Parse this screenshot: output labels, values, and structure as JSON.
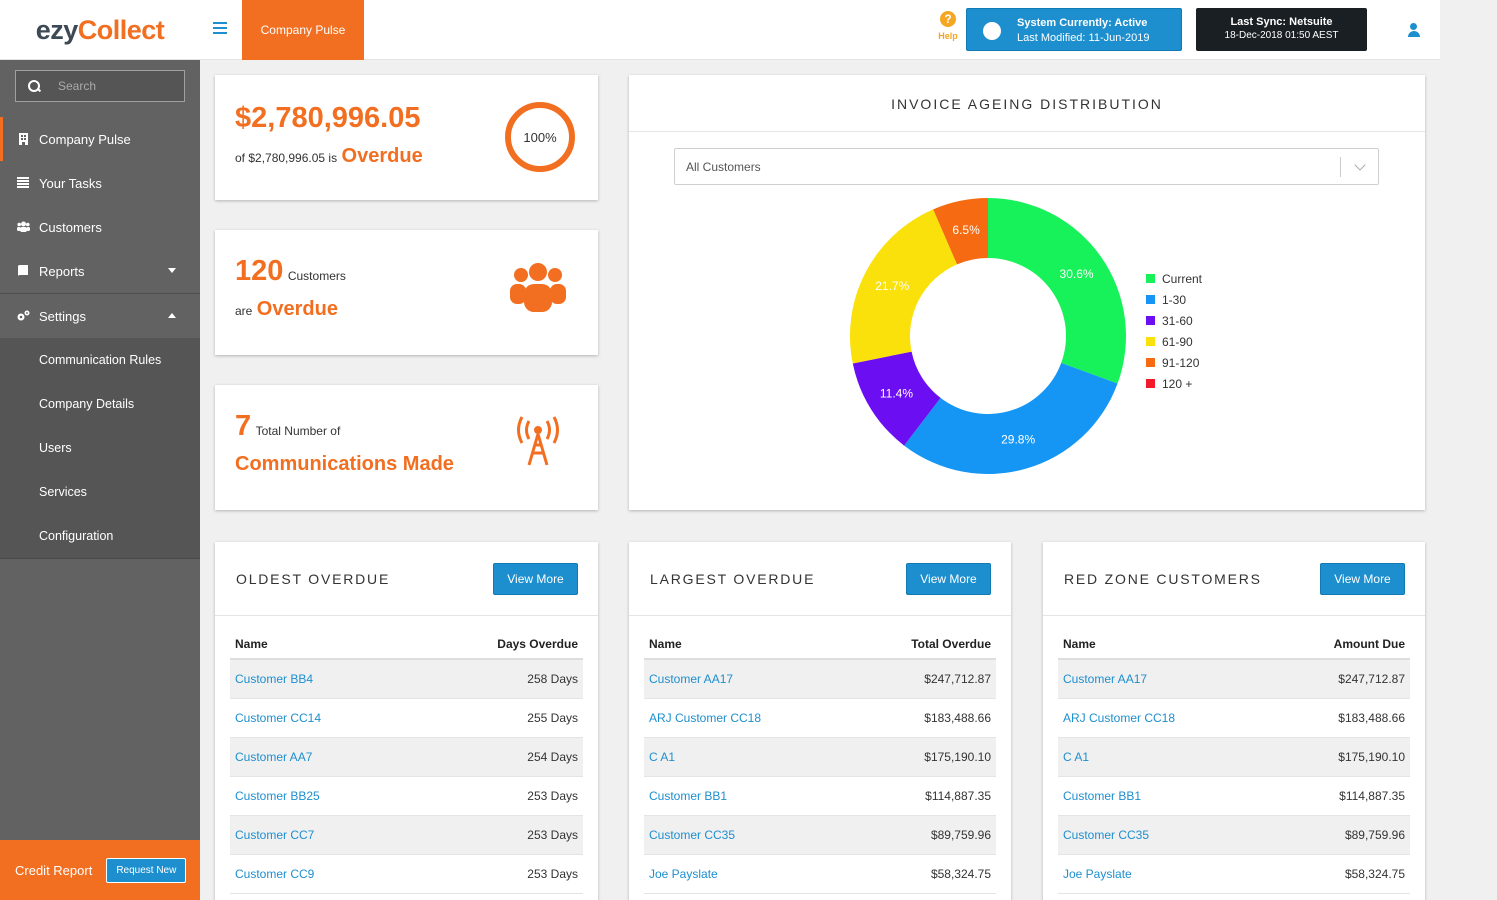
{
  "app": {
    "logo_a": "ezy",
    "logo_b": "Collect",
    "page_tab": "Company Pulse"
  },
  "header": {
    "help_label": "Help",
    "system_status": "System Currently: Active",
    "last_modified": "Last Modified: 11-Jun-2019",
    "last_sync": "Last Sync: Netsuite",
    "last_sync_time": "18-Dec-2018 01:50 AEST"
  },
  "sidebar": {
    "search_placeholder": "Search",
    "items": [
      {
        "label": "Company Pulse",
        "icon": "building-icon"
      },
      {
        "label": "Your Tasks",
        "icon": "list-icon"
      },
      {
        "label": "Customers",
        "icon": "users-icon"
      },
      {
        "label": "Reports",
        "icon": "book-icon"
      },
      {
        "label": "Settings",
        "icon": "gears-icon"
      }
    ],
    "settings_sub": [
      "Communication Rules",
      "Company Details",
      "Users",
      "Services",
      "Configuration"
    ],
    "credit_label": "Credit Report",
    "credit_button": "Request New"
  },
  "kpis": {
    "overdue_amount": "$2,780,996.05",
    "overdue_of": "of $2,780,996.05 is",
    "overdue_word": "Overdue",
    "overdue_pct": "100%",
    "customers_count": "120",
    "customers_label": "Customers",
    "customers_are": "are",
    "customers_overdue": "Overdue",
    "comms_count": "7",
    "comms_label": "Total Number of",
    "comms_made": "Communications Made"
  },
  "chart": {
    "title": "INVOICE AGEING DISTRIBUTION",
    "filter_value": "All Customers"
  },
  "chart_data": {
    "type": "pie",
    "title": "INVOICE AGEING DISTRIBUTION",
    "legend_position": "right",
    "categories": [
      "Current",
      "1-30",
      "31-60",
      "61-90",
      "91-120",
      "120 +"
    ],
    "values": [
      30.6,
      29.8,
      11.4,
      21.7,
      6.5,
      0
    ],
    "labels": [
      "30.6%",
      "29.8%",
      "11.4%",
      "21.7%",
      "6.5%",
      ""
    ],
    "colors": [
      "#18f25a",
      "#1596f5",
      "#6c0ef2",
      "#fae10c",
      "#f66a12",
      "#f21a2a"
    ]
  },
  "tables": {
    "oldest": {
      "title": "OLDEST OVERDUE",
      "button": "View More",
      "col1": "Name",
      "col2": "Days Overdue",
      "rows": [
        {
          "name": "Customer BB4",
          "value": "258 Days"
        },
        {
          "name": "Customer CC14",
          "value": "255 Days"
        },
        {
          "name": "Customer AA7",
          "value": "254 Days"
        },
        {
          "name": "Customer BB25",
          "value": "253 Days"
        },
        {
          "name": "Customer CC7",
          "value": "253 Days"
        },
        {
          "name": "Customer CC9",
          "value": "253 Days"
        }
      ]
    },
    "largest": {
      "title": "LARGEST OVERDUE",
      "button": "View More",
      "col1": "Name",
      "col2": "Total Overdue",
      "rows": [
        {
          "name": "Customer AA17",
          "value": "$247,712.87"
        },
        {
          "name": "ARJ Customer CC18",
          "value": "$183,488.66"
        },
        {
          "name": "C A1",
          "value": "$175,190.10"
        },
        {
          "name": "Customer BB1",
          "value": "$114,887.35"
        },
        {
          "name": "Customer CC35",
          "value": "$89,759.96"
        },
        {
          "name": "Joe Payslate",
          "value": "$58,324.75"
        }
      ]
    },
    "redzone": {
      "title": "RED ZONE CUSTOMERS",
      "button": "View More",
      "col1": "Name",
      "col2": "Amount Due",
      "rows": [
        {
          "name": "Customer AA17",
          "value": "$247,712.87"
        },
        {
          "name": "ARJ Customer CC18",
          "value": "$183,488.66"
        },
        {
          "name": "C A1",
          "value": "$175,190.10"
        },
        {
          "name": "Customer BB1",
          "value": "$114,887.35"
        },
        {
          "name": "Customer CC35",
          "value": "$89,759.96"
        },
        {
          "name": "Joe Payslate",
          "value": "$58,324.75"
        }
      ]
    }
  }
}
